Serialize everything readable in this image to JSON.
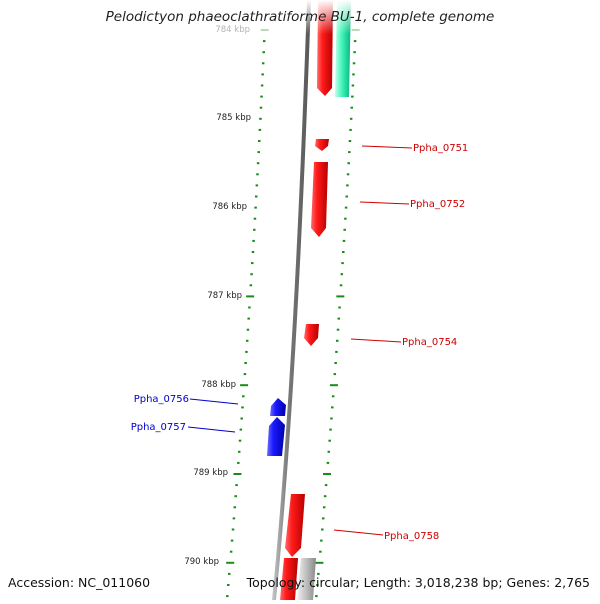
{
  "title": "Pelodictyon phaeoclathratiforme BU-1, complete genome",
  "footer": {
    "accession": "Accession: NC_011060",
    "topology": "Topology: circular; Length: 3,018,238 bp; Genes: 2,765"
  },
  "colors": {
    "forward_gene": "#ee0000",
    "reverse_gene": "#0000ee",
    "rna_gene": "#22e0a0",
    "ticks": "#1a8a1a",
    "backbone": "#7a7a7a"
  },
  "ticks": [
    {
      "label": "784 kbp"
    },
    {
      "label": "785 kbp"
    },
    {
      "label": "786 kbp"
    },
    {
      "label": "787 kbp"
    },
    {
      "label": "788 kbp"
    },
    {
      "label": "789 kbp"
    },
    {
      "label": "790 kbp"
    }
  ],
  "gene_labels": [
    {
      "name": "Ppha_0751",
      "strand": "forward"
    },
    {
      "name": "Ppha_0752",
      "strand": "forward"
    },
    {
      "name": "Ppha_0754",
      "strand": "forward"
    },
    {
      "name": "Ppha_0756",
      "strand": "reverse"
    },
    {
      "name": "Ppha_0757",
      "strand": "reverse"
    },
    {
      "name": "Ppha_0758",
      "strand": "forward"
    }
  ]
}
